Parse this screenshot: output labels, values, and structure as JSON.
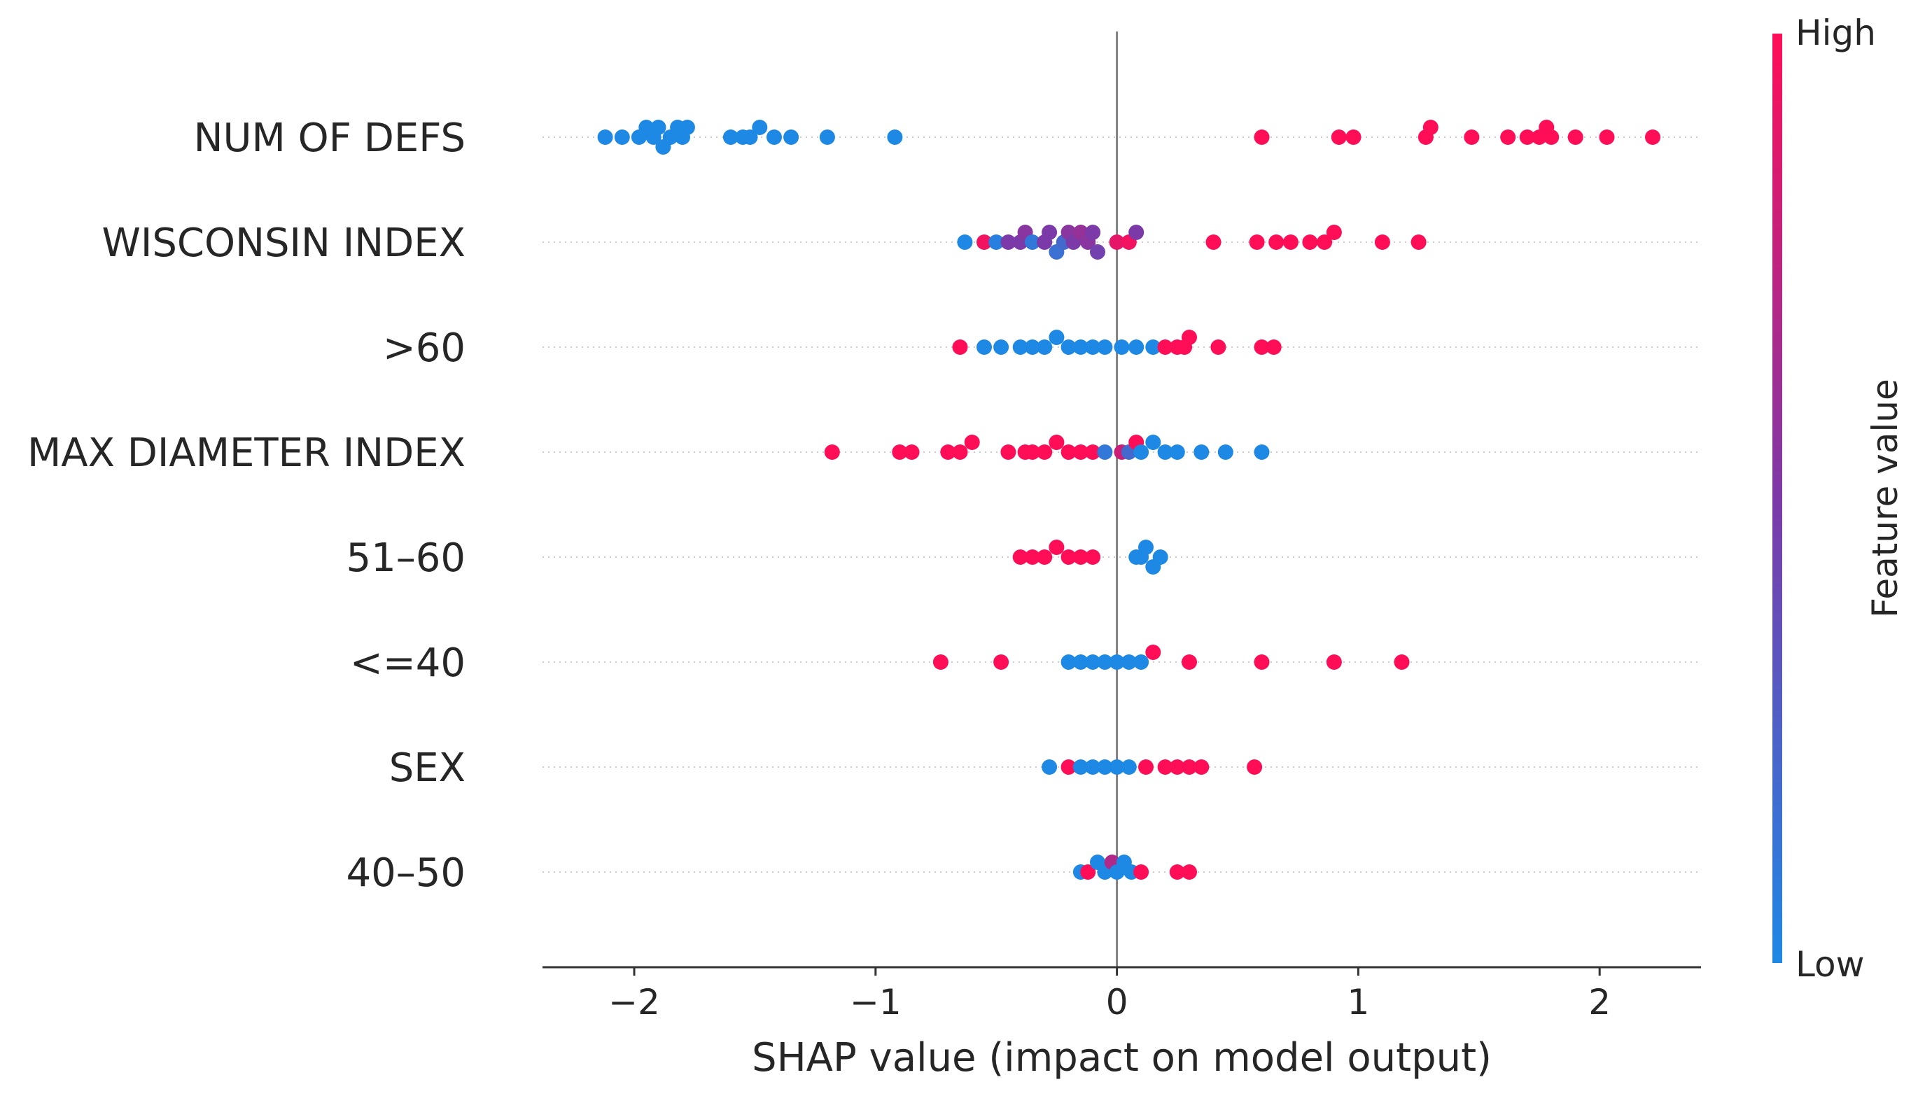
{
  "chart_data": {
    "type": "scatter",
    "subtype": "shap-beeswarm",
    "title": "",
    "xlabel": "SHAP value (impact on model output)",
    "xlim": [
      -2.38,
      2.42
    ],
    "xticks": [
      {
        "value": -2,
        "label": "−2"
      },
      {
        "value": -1,
        "label": "−1"
      },
      {
        "value": 0,
        "label": "0"
      },
      {
        "value": 1,
        "label": "1"
      },
      {
        "value": 2,
        "label": "2"
      }
    ],
    "colorbar": {
      "title": "Feature value",
      "high_label": "High",
      "low_label": "Low",
      "low_color": "#1e88e5",
      "mid_color": "#7c3aa8",
      "high_color": "#ff0d57"
    },
    "features": [
      {
        "name": "NUM OF DEFS",
        "points": [
          {
            "shap": -2.12,
            "fv": 0
          },
          {
            "shap": -2.05,
            "fv": 0
          },
          {
            "shap": -1.98,
            "fv": 0
          },
          {
            "shap": -1.95,
            "fv": 0
          },
          {
            "shap": -1.92,
            "fv": 0
          },
          {
            "shap": -1.9,
            "fv": 0
          },
          {
            "shap": -1.88,
            "fv": 0
          },
          {
            "shap": -1.85,
            "fv": 0
          },
          {
            "shap": -1.82,
            "fv": 0
          },
          {
            "shap": -1.8,
            "fv": 0
          },
          {
            "shap": -1.78,
            "fv": 0
          },
          {
            "shap": -1.6,
            "fv": 0
          },
          {
            "shap": -1.55,
            "fv": 0
          },
          {
            "shap": -1.52,
            "fv": 0
          },
          {
            "shap": -1.48,
            "fv": 0
          },
          {
            "shap": -1.42,
            "fv": 0
          },
          {
            "shap": -1.35,
            "fv": 0
          },
          {
            "shap": -1.2,
            "fv": 0
          },
          {
            "shap": -0.92,
            "fv": 0
          },
          {
            "shap": 0.6,
            "fv": 1
          },
          {
            "shap": 0.92,
            "fv": 1
          },
          {
            "shap": 0.98,
            "fv": 1
          },
          {
            "shap": 1.28,
            "fv": 1
          },
          {
            "shap": 1.3,
            "fv": 1
          },
          {
            "shap": 1.47,
            "fv": 1
          },
          {
            "shap": 1.62,
            "fv": 1
          },
          {
            "shap": 1.7,
            "fv": 1
          },
          {
            "shap": 1.75,
            "fv": 1
          },
          {
            "shap": 1.78,
            "fv": 1
          },
          {
            "shap": 1.8,
            "fv": 1
          },
          {
            "shap": 1.9,
            "fv": 1
          },
          {
            "shap": 2.03,
            "fv": 1
          },
          {
            "shap": 2.22,
            "fv": 1
          }
        ]
      },
      {
        "name": "WISCONSIN INDEX",
        "points": [
          {
            "shap": -0.63,
            "fv": 0
          },
          {
            "shap": -0.55,
            "fv": 0.95
          },
          {
            "shap": -0.5,
            "fv": 0.05
          },
          {
            "shap": -0.45,
            "fv": 0.5
          },
          {
            "shap": -0.4,
            "fv": 0.5
          },
          {
            "shap": -0.38,
            "fv": 0.55
          },
          {
            "shap": -0.35,
            "fv": 0.1
          },
          {
            "shap": -0.3,
            "fv": 0.5
          },
          {
            "shap": -0.28,
            "fv": 0.5
          },
          {
            "shap": -0.25,
            "fv": 0.15
          },
          {
            "shap": -0.22,
            "fv": 0.2
          },
          {
            "shap": -0.2,
            "fv": 0.55
          },
          {
            "shap": -0.18,
            "fv": 0.5
          },
          {
            "shap": -0.15,
            "fv": 0.6
          },
          {
            "shap": -0.12,
            "fv": 0.55
          },
          {
            "shap": -0.1,
            "fv": 0.5
          },
          {
            "shap": -0.08,
            "fv": 0.45
          },
          {
            "shap": 0.0,
            "fv": 0.9
          },
          {
            "shap": 0.05,
            "fv": 0.95
          },
          {
            "shap": 0.08,
            "fv": 0.5
          },
          {
            "shap": 0.4,
            "fv": 1
          },
          {
            "shap": 0.58,
            "fv": 1
          },
          {
            "shap": 0.66,
            "fv": 1
          },
          {
            "shap": 0.72,
            "fv": 1
          },
          {
            "shap": 0.8,
            "fv": 1
          },
          {
            "shap": 0.86,
            "fv": 1
          },
          {
            "shap": 0.9,
            "fv": 1
          },
          {
            "shap": 1.1,
            "fv": 1
          },
          {
            "shap": 1.25,
            "fv": 1
          }
        ]
      },
      {
        "name": ">60",
        "points": [
          {
            "shap": -0.65,
            "fv": 1
          },
          {
            "shap": -0.55,
            "fv": 0
          },
          {
            "shap": -0.48,
            "fv": 0
          },
          {
            "shap": -0.4,
            "fv": 0
          },
          {
            "shap": -0.35,
            "fv": 0
          },
          {
            "shap": -0.3,
            "fv": 0
          },
          {
            "shap": -0.25,
            "fv": 0
          },
          {
            "shap": -0.2,
            "fv": 0
          },
          {
            "shap": -0.15,
            "fv": 0
          },
          {
            "shap": -0.1,
            "fv": 0
          },
          {
            "shap": -0.05,
            "fv": 0
          },
          {
            "shap": 0.02,
            "fv": 0
          },
          {
            "shap": 0.08,
            "fv": 0
          },
          {
            "shap": 0.15,
            "fv": 0
          },
          {
            "shap": 0.2,
            "fv": 1
          },
          {
            "shap": 0.25,
            "fv": 1
          },
          {
            "shap": 0.28,
            "fv": 1
          },
          {
            "shap": 0.3,
            "fv": 1
          },
          {
            "shap": 0.42,
            "fv": 1
          },
          {
            "shap": 0.6,
            "fv": 1
          },
          {
            "shap": 0.65,
            "fv": 1
          }
        ]
      },
      {
        "name": "MAX DIAMETER INDEX",
        "points": [
          {
            "shap": -1.18,
            "fv": 1
          },
          {
            "shap": -0.9,
            "fv": 1
          },
          {
            "shap": -0.85,
            "fv": 1
          },
          {
            "shap": -0.7,
            "fv": 1
          },
          {
            "shap": -0.65,
            "fv": 1
          },
          {
            "shap": -0.6,
            "fv": 1
          },
          {
            "shap": -0.45,
            "fv": 1
          },
          {
            "shap": -0.38,
            "fv": 1
          },
          {
            "shap": -0.35,
            "fv": 1
          },
          {
            "shap": -0.3,
            "fv": 1
          },
          {
            "shap": -0.25,
            "fv": 1
          },
          {
            "shap": -0.2,
            "fv": 1
          },
          {
            "shap": -0.15,
            "fv": 1
          },
          {
            "shap": -0.1,
            "fv": 1
          },
          {
            "shap": -0.05,
            "fv": 0.1
          },
          {
            "shap": 0.02,
            "fv": 0.8
          },
          {
            "shap": 0.05,
            "fv": 0.2
          },
          {
            "shap": 0.08,
            "fv": 1
          },
          {
            "shap": 0.1,
            "fv": 0
          },
          {
            "shap": 0.15,
            "fv": 0
          },
          {
            "shap": 0.2,
            "fv": 0
          },
          {
            "shap": 0.25,
            "fv": 0
          },
          {
            "shap": 0.35,
            "fv": 0
          },
          {
            "shap": 0.45,
            "fv": 0
          },
          {
            "shap": 0.6,
            "fv": 0
          }
        ]
      },
      {
        "name": "51–60",
        "points": [
          {
            "shap": -0.4,
            "fv": 1
          },
          {
            "shap": -0.35,
            "fv": 1
          },
          {
            "shap": -0.3,
            "fv": 1
          },
          {
            "shap": -0.25,
            "fv": 1
          },
          {
            "shap": -0.2,
            "fv": 1
          },
          {
            "shap": -0.15,
            "fv": 1
          },
          {
            "shap": -0.1,
            "fv": 1
          },
          {
            "shap": 0.08,
            "fv": 0
          },
          {
            "shap": 0.1,
            "fv": 0
          },
          {
            "shap": 0.12,
            "fv": 0
          },
          {
            "shap": 0.15,
            "fv": 0
          },
          {
            "shap": 0.18,
            "fv": 0
          }
        ]
      },
      {
        "name": "<=40",
        "points": [
          {
            "shap": -0.73,
            "fv": 1
          },
          {
            "shap": -0.48,
            "fv": 1
          },
          {
            "shap": -0.2,
            "fv": 0
          },
          {
            "shap": -0.15,
            "fv": 0
          },
          {
            "shap": -0.1,
            "fv": 0
          },
          {
            "shap": -0.05,
            "fv": 0
          },
          {
            "shap": 0.0,
            "fv": 0
          },
          {
            "shap": 0.05,
            "fv": 0
          },
          {
            "shap": 0.1,
            "fv": 0
          },
          {
            "shap": 0.15,
            "fv": 1
          },
          {
            "shap": 0.3,
            "fv": 1
          },
          {
            "shap": 0.6,
            "fv": 1
          },
          {
            "shap": 0.9,
            "fv": 1
          },
          {
            "shap": 1.18,
            "fv": 1
          }
        ]
      },
      {
        "name": "SEX",
        "points": [
          {
            "shap": -0.28,
            "fv": 0
          },
          {
            "shap": -0.2,
            "fv": 1
          },
          {
            "shap": -0.15,
            "fv": 0
          },
          {
            "shap": -0.1,
            "fv": 0
          },
          {
            "shap": -0.05,
            "fv": 0
          },
          {
            "shap": 0.0,
            "fv": 0
          },
          {
            "shap": 0.05,
            "fv": 0
          },
          {
            "shap": 0.12,
            "fv": 1
          },
          {
            "shap": 0.2,
            "fv": 1
          },
          {
            "shap": 0.25,
            "fv": 1
          },
          {
            "shap": 0.3,
            "fv": 1
          },
          {
            "shap": 0.35,
            "fv": 1
          },
          {
            "shap": 0.57,
            "fv": 1
          }
        ]
      },
      {
        "name": "40–50",
        "points": [
          {
            "shap": -0.15,
            "fv": 0
          },
          {
            "shap": -0.12,
            "fv": 1
          },
          {
            "shap": -0.08,
            "fv": 0
          },
          {
            "shap": -0.05,
            "fv": 0
          },
          {
            "shap": -0.02,
            "fv": 0.7
          },
          {
            "shap": 0.0,
            "fv": 0
          },
          {
            "shap": 0.03,
            "fv": 0
          },
          {
            "shap": 0.06,
            "fv": 0
          },
          {
            "shap": 0.1,
            "fv": 1
          },
          {
            "shap": 0.25,
            "fv": 1
          },
          {
            "shap": 0.3,
            "fv": 1
          }
        ]
      }
    ]
  }
}
